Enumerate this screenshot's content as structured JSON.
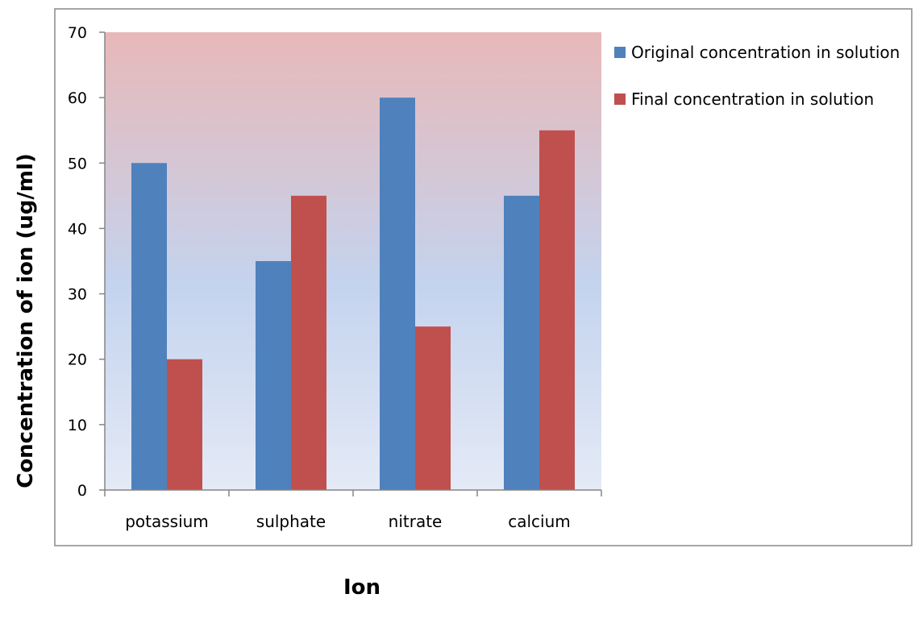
{
  "chart_data": {
    "type": "bar",
    "title": "",
    "xlabel": "Ion",
    "ylabel": "Concentration of ion (ug/ml)",
    "categories": [
      "potassium",
      "sulphate",
      "nitrate",
      "calcium"
    ],
    "series": [
      {
        "name": "Original concentration in solution",
        "color": "#4F81BD",
        "values": [
          50,
          35,
          60,
          45
        ]
      },
      {
        "name": "Final concentration in solution",
        "color": "#C0504D",
        "values": [
          20,
          45,
          25,
          55
        ]
      }
    ],
    "ylim": [
      0,
      70
    ],
    "yticks": [
      0,
      10,
      20,
      30,
      40,
      50,
      60,
      70
    ],
    "grid": false,
    "legend_position": "right",
    "plot_background": "gradient from light blue (bottom) to pale red (top)"
  }
}
